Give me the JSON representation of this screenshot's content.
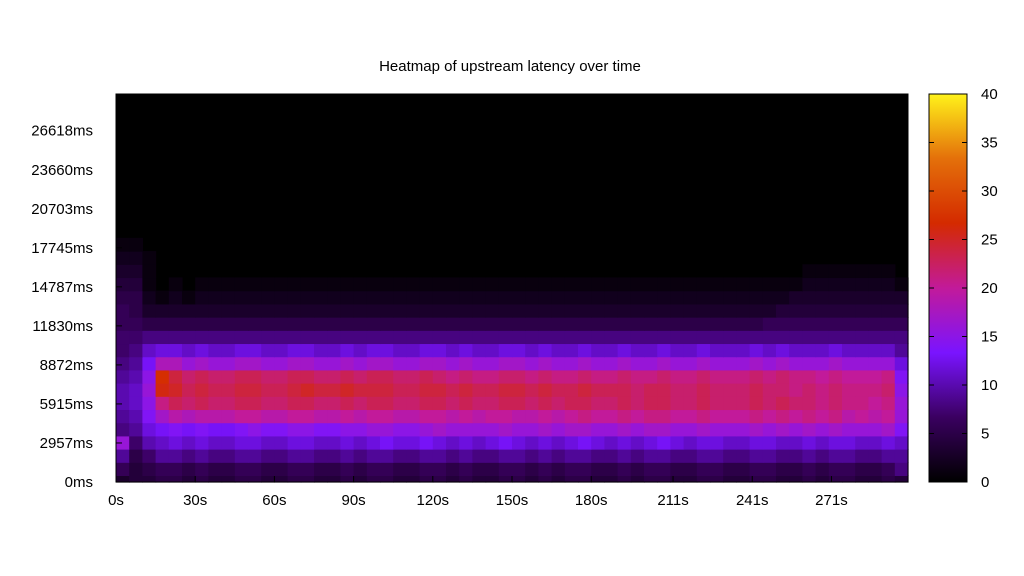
{
  "chart_data": {
    "type": "heatmap",
    "title": "Heatmap of upstream latency over time",
    "xlabel": "",
    "ylabel": "",
    "x_tick_labels": [
      "0s",
      "30s",
      "60s",
      "90s",
      "120s",
      "150s",
      "180s",
      "211s",
      "241s",
      "271s"
    ],
    "x_ticks": [
      0,
      30,
      60,
      90,
      120,
      150,
      180,
      211,
      241,
      271
    ],
    "xlim": [
      0,
      300
    ],
    "y_tick_labels": [
      "0ms",
      "2957ms",
      "5915ms",
      "8872ms",
      "11830ms",
      "14787ms",
      "17745ms",
      "20703ms",
      "23660ms",
      "26618ms"
    ],
    "y_ticks": [
      0,
      2957,
      5915,
      8872,
      11830,
      14787,
      17745,
      20703,
      23660,
      26618
    ],
    "ylim": [
      0,
      29400
    ],
    "colorbar": {
      "range": [
        0,
        40
      ],
      "tick_labels": [
        "0",
        "5",
        "10",
        "15",
        "20",
        "25",
        "30",
        "35",
        "40"
      ],
      "ticks": [
        0,
        5,
        10,
        15,
        20,
        25,
        30,
        35,
        40
      ],
      "palette": [
        "#000000",
        "#3a0060",
        "#7a14ff",
        "#c21a9a",
        "#d42a00",
        "#e4700a",
        "#fff21a"
      ]
    },
    "cols": 60,
    "row_centers_ms": [
      0,
      1000,
      2000,
      3000,
      4000,
      5000,
      6000,
      7000,
      8000,
      9000,
      10000,
      11000,
      12000,
      13000,
      14000,
      15000,
      16000,
      17000,
      18000
    ],
    "grid": false,
    "legend": "none",
    "values": [
      [
        3,
        4,
        4,
        5,
        5,
        4,
        5,
        4,
        4,
        5,
        5,
        4,
        4,
        5,
        5,
        4,
        4,
        5,
        4,
        5,
        5,
        4,
        4,
        5,
        5,
        4,
        5,
        4,
        4,
        5,
        5,
        4,
        5,
        4,
        5,
        5,
        4,
        4,
        5,
        4,
        5,
        5,
        4,
        4,
        5,
        5,
        4,
        4,
        5,
        5,
        4,
        4,
        5,
        4,
        5,
        5,
        4,
        4,
        5,
        4
      ],
      [
        6,
        4,
        5,
        6,
        6,
        5,
        6,
        5,
        5,
        6,
        6,
        5,
        5,
        6,
        6,
        5,
        5,
        6,
        5,
        6,
        6,
        5,
        5,
        6,
        6,
        5,
        6,
        5,
        5,
        6,
        6,
        5,
        6,
        5,
        6,
        6,
        5,
        5,
        6,
        5,
        6,
        6,
        5,
        5,
        6,
        6,
        5,
        5,
        6,
        6,
        5,
        5,
        6,
        5,
        6,
        6,
        5,
        5,
        6,
        8
      ],
      [
        9,
        5,
        7,
        9,
        9,
        8,
        9,
        8,
        8,
        9,
        9,
        8,
        8,
        9,
        9,
        8,
        8,
        9,
        8,
        9,
        9,
        8,
        8,
        9,
        9,
        8,
        9,
        8,
        8,
        9,
        9,
        8,
        9,
        8,
        9,
        9,
        8,
        8,
        9,
        8,
        9,
        9,
        8,
        8,
        9,
        9,
        8,
        8,
        9,
        9,
        8,
        8,
        9,
        8,
        9,
        9,
        8,
        8,
        9,
        9
      ],
      [
        16,
        7,
        10,
        11,
        12,
        11,
        12,
        11,
        11,
        12,
        12,
        11,
        11,
        12,
        12,
        11,
        11,
        12,
        11,
        12,
        13,
        12,
        12,
        13,
        12,
        11,
        12,
        11,
        12,
        13,
        12,
        11,
        12,
        11,
        12,
        13,
        12,
        11,
        12,
        11,
        12,
        13,
        12,
        11,
        12,
        12,
        11,
        11,
        12,
        12,
        11,
        11,
        12,
        11,
        12,
        12,
        11,
        11,
        12,
        11
      ],
      [
        8,
        9,
        12,
        13,
        14,
        13,
        14,
        13,
        13,
        14,
        15,
        14,
        14,
        15,
        15,
        14,
        14,
        15,
        15,
        16,
        16,
        15,
        15,
        16,
        17,
        16,
        16,
        16,
        16,
        17,
        16,
        16,
        17,
        16,
        17,
        17,
        16,
        16,
        17,
        16,
        17,
        17,
        16,
        16,
        17,
        16,
        16,
        16,
        17,
        16,
        17,
        16,
        17,
        16,
        17,
        16,
        16,
        16,
        17,
        14
      ],
      [
        9,
        10,
        14,
        17,
        19,
        18,
        19,
        19,
        19,
        20,
        20,
        19,
        19,
        20,
        20,
        19,
        19,
        20,
        19,
        20,
        20,
        19,
        19,
        20,
        20,
        19,
        20,
        19,
        20,
        20,
        19,
        19,
        20,
        19,
        20,
        21,
        20,
        20,
        21,
        20,
        21,
        21,
        20,
        20,
        21,
        20,
        20,
        20,
        21,
        20,
        21,
        20,
        21,
        20,
        21,
        19,
        20,
        19,
        20,
        16
      ],
      [
        10,
        11,
        15,
        21,
        23,
        22,
        23,
        22,
        22,
        23,
        23,
        22,
        22,
        23,
        23,
        22,
        22,
        23,
        22,
        23,
        23,
        22,
        22,
        23,
        23,
        22,
        23,
        22,
        22,
        23,
        23,
        22,
        23,
        22,
        23,
        23,
        22,
        22,
        23,
        22,
        23,
        23,
        22,
        22,
        23,
        22,
        22,
        22,
        23,
        22,
        23,
        22,
        22,
        21,
        22,
        21,
        21,
        20,
        21,
        16
      ],
      [
        10,
        11,
        16,
        26,
        25,
        23,
        24,
        23,
        23,
        24,
        24,
        23,
        23,
        24,
        25,
        24,
        24,
        25,
        24,
        24,
        24,
        23,
        23,
        24,
        24,
        23,
        24,
        23,
        23,
        24,
        24,
        23,
        24,
        23,
        23,
        24,
        23,
        23,
        23,
        22,
        23,
        23,
        22,
        22,
        23,
        22,
        22,
        22,
        23,
        22,
        22,
        21,
        22,
        21,
        22,
        21,
        21,
        21,
        22,
        15
      ],
      [
        9,
        10,
        15,
        27,
        24,
        22,
        23,
        22,
        22,
        23,
        23,
        22,
        22,
        23,
        23,
        22,
        22,
        23,
        22,
        23,
        23,
        22,
        22,
        23,
        22,
        21,
        22,
        21,
        21,
        22,
        22,
        21,
        22,
        21,
        21,
        22,
        21,
        21,
        22,
        21,
        21,
        22,
        21,
        21,
        22,
        21,
        21,
        21,
        22,
        21,
        22,
        21,
        21,
        20,
        21,
        20,
        20,
        20,
        21,
        14
      ],
      [
        8,
        9,
        13,
        18,
        18,
        16,
        17,
        16,
        16,
        17,
        17,
        16,
        16,
        17,
        17,
        16,
        16,
        17,
        16,
        17,
        17,
        16,
        16,
        17,
        17,
        16,
        17,
        16,
        16,
        17,
        17,
        16,
        17,
        16,
        16,
        17,
        16,
        16,
        17,
        16,
        16,
        17,
        16,
        16,
        17,
        16,
        16,
        16,
        17,
        16,
        17,
        16,
        16,
        16,
        17,
        16,
        16,
        16,
        16,
        12
      ],
      [
        7,
        8,
        11,
        12,
        12,
        11,
        12,
        11,
        11,
        12,
        12,
        11,
        11,
        12,
        12,
        11,
        11,
        12,
        11,
        12,
        12,
        11,
        11,
        12,
        12,
        11,
        12,
        11,
        11,
        12,
        12,
        11,
        12,
        11,
        11,
        12,
        11,
        11,
        12,
        11,
        11,
        12,
        11,
        11,
        12,
        11,
        11,
        11,
        12,
        11,
        12,
        11,
        11,
        11,
        12,
        11,
        11,
        11,
        11,
        9
      ],
      [
        7,
        7,
        8,
        8,
        8,
        8,
        8,
        8,
        8,
        8,
        8,
        8,
        8,
        8,
        8,
        8,
        8,
        8,
        8,
        8,
        8,
        8,
        8,
        8,
        8,
        8,
        8,
        8,
        8,
        8,
        8,
        8,
        8,
        8,
        8,
        8,
        8,
        8,
        8,
        8,
        8,
        8,
        8,
        8,
        8,
        8,
        8,
        8,
        8,
        8,
        8,
        8,
        8,
        8,
        8,
        8,
        8,
        8,
        8,
        8
      ],
      [
        6,
        6,
        5,
        5,
        5,
        5,
        5,
        5,
        5,
        5,
        5,
        5,
        5,
        5,
        5,
        5,
        5,
        5,
        5,
        5,
        5,
        5,
        5,
        5,
        5,
        5,
        5,
        5,
        5,
        5,
        5,
        5,
        5,
        5,
        5,
        5,
        5,
        5,
        5,
        5,
        5,
        5,
        5,
        5,
        5,
        5,
        5,
        5,
        5,
        6,
        6,
        6,
        6,
        6,
        6,
        6,
        6,
        6,
        6,
        6
      ],
      [
        6,
        5,
        3,
        3,
        3,
        3,
        3,
        3,
        3,
        3,
        3,
        3,
        3,
        3,
        3,
        3,
        3,
        3,
        3,
        3,
        3,
        3,
        3,
        3,
        3,
        3,
        3,
        3,
        3,
        3,
        3,
        3,
        3,
        3,
        3,
        3,
        3,
        3,
        3,
        3,
        3,
        3,
        3,
        3,
        3,
        3,
        3,
        3,
        3,
        3,
        4,
        4,
        4,
        4,
        4,
        4,
        4,
        4,
        4,
        4
      ],
      [
        5,
        5,
        2,
        1,
        2,
        1,
        2,
        2,
        2,
        2,
        2,
        2,
        2,
        2,
        2,
        2,
        2,
        2,
        2,
        2,
        2,
        2,
        2,
        2,
        2,
        2,
        2,
        2,
        2,
        2,
        2,
        2,
        2,
        2,
        2,
        2,
        2,
        2,
        2,
        2,
        2,
        2,
        2,
        2,
        2,
        2,
        2,
        2,
        2,
        2,
        2,
        3,
        3,
        3,
        3,
        3,
        3,
        3,
        3,
        3
      ],
      [
        4,
        4,
        1,
        0,
        1,
        0,
        1,
        1,
        1,
        1,
        1,
        1,
        1,
        1,
        1,
        1,
        1,
        1,
        1,
        1,
        1,
        1,
        1,
        1,
        1,
        1,
        1,
        1,
        1,
        1,
        1,
        1,
        1,
        1,
        1,
        1,
        1,
        1,
        1,
        1,
        1,
        1,
        1,
        1,
        1,
        1,
        1,
        1,
        1,
        1,
        1,
        1,
        2,
        2,
        2,
        2,
        2,
        2,
        2,
        1
      ],
      [
        3,
        3,
        1,
        0,
        0,
        0,
        0,
        0,
        0,
        0,
        0,
        0,
        0,
        0,
        0,
        0,
        0,
        0,
        0,
        0,
        0,
        0,
        0,
        0,
        0,
        0,
        0,
        0,
        0,
        0,
        0,
        0,
        0,
        0,
        0,
        0,
        0,
        0,
        0,
        0,
        0,
        0,
        0,
        0,
        0,
        0,
        0,
        0,
        0,
        0,
        0,
        0,
        1,
        1,
        1,
        1,
        1,
        1,
        1,
        0
      ],
      [
        2,
        2,
        1,
        0,
        0,
        0,
        0,
        0,
        0,
        0,
        0,
        0,
        0,
        0,
        0,
        0,
        0,
        0,
        0,
        0,
        0,
        0,
        0,
        0,
        0,
        0,
        0,
        0,
        0,
        0,
        0,
        0,
        0,
        0,
        0,
        0,
        0,
        0,
        0,
        0,
        0,
        0,
        0,
        0,
        0,
        0,
        0,
        0,
        0,
        0,
        0,
        0,
        0,
        0,
        0,
        0,
        0,
        0,
        0,
        0
      ],
      [
        1,
        1,
        0,
        0,
        0,
        0,
        0,
        0,
        0,
        0,
        0,
        0,
        0,
        0,
        0,
        0,
        0,
        0,
        0,
        0,
        0,
        0,
        0,
        0,
        0,
        0,
        0,
        0,
        0,
        0,
        0,
        0,
        0,
        0,
        0,
        0,
        0,
        0,
        0,
        0,
        0,
        0,
        0,
        0,
        0,
        0,
        0,
        0,
        0,
        0,
        0,
        0,
        0,
        0,
        0,
        0,
        0,
        0,
        0,
        0
      ]
    ]
  }
}
